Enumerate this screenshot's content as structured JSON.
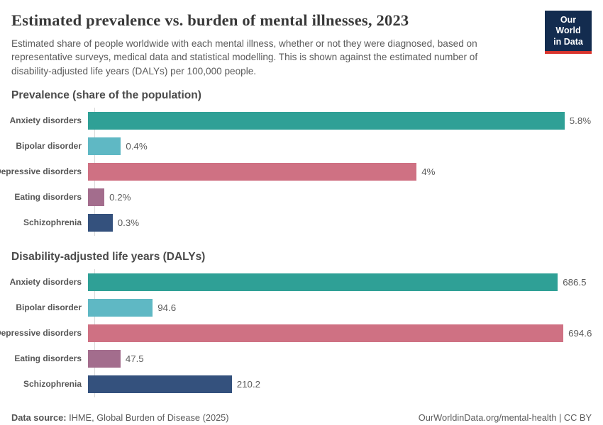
{
  "header": {
    "title": "Estimated prevalence vs. burden of mental illnesses, 2023",
    "subtitle": "Estimated share of people worldwide with each mental illness, whether or not they were diagnosed, based on representative surveys, medical data and statistical modelling. This is shown against the estimated number of disability-adjusted life years (DALYs) per 100,000 people.",
    "logo": {
      "line1": "Our World",
      "line2": "in Data",
      "bg_color": "#132c4f",
      "accent_color": "#d8352e"
    }
  },
  "chart_data": [
    {
      "type": "bar",
      "orientation": "horizontal",
      "title": "Prevalence (share of the population)",
      "categories": [
        "Anxiety disorders",
        "Bipolar disorder",
        "Depressive disorders",
        "Eating disorders",
        "Schizophrenia"
      ],
      "values": [
        5.8,
        0.4,
        4,
        0.2,
        0.3
      ],
      "value_labels": [
        "5.8%",
        "0.4%",
        "4%",
        "0.2%",
        "0.3%"
      ],
      "colors": [
        "#2fa096",
        "#5fb8c4",
        "#cf7183",
        "#a36d8d",
        "#34517d"
      ],
      "unit": "%",
      "xlim": [
        0,
        6.13
      ],
      "grid": false,
      "legend": "none"
    },
    {
      "type": "bar",
      "orientation": "horizontal",
      "title": "Disability-adjusted life years (DALYs)",
      "categories": [
        "Anxiety disorders",
        "Bipolar disorder",
        "Depressive disorders",
        "Eating disorders",
        "Schizophrenia"
      ],
      "values": [
        686.5,
        94.6,
        694.6,
        47.5,
        210.2
      ],
      "value_labels": [
        "686.5",
        "94.6",
        "694.6",
        "47.5",
        "210.2"
      ],
      "colors": [
        "#2fa096",
        "#5fb8c4",
        "#cf7183",
        "#a36d8d",
        "#34517d"
      ],
      "unit": "DALYs per 100,000 people",
      "xlim": [
        0,
        736
      ],
      "grid": false,
      "legend": "none"
    }
  ],
  "footer": {
    "source_label": "Data source:",
    "source_text": " IHME, Global Burden of Disease (2025)",
    "right_text": "OurWorldinData.org/mental-health | CC BY"
  }
}
